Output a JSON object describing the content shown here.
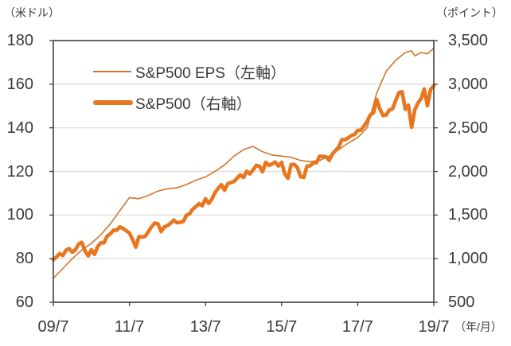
{
  "chart_data": {
    "type": "line",
    "title": "",
    "left_axis": {
      "unit": "（米ドル）",
      "min": 60,
      "max": 180,
      "ticks": [
        180,
        160,
        140,
        120,
        100,
        80,
        60
      ],
      "tick_labels": [
        "180",
        "160",
        "140",
        "120",
        "100",
        "80",
        "60"
      ],
      "gridlines": [
        160,
        140,
        120,
        100,
        80
      ]
    },
    "right_axis": {
      "unit": "（ポイント）",
      "min": 500,
      "max": 3500,
      "ticks": [
        3500,
        3000,
        2500,
        2000,
        1500,
        1000,
        500
      ],
      "tick_labels": [
        "3,500",
        "3,000",
        "2,500",
        "2,000",
        "1,500",
        "1,000",
        "500"
      ]
    },
    "x_axis": {
      "unit": "（年/月）",
      "min": 0,
      "max": 120,
      "tick_positions": [
        0,
        24,
        48,
        72,
        96,
        120
      ],
      "tick_labels": [
        "09/7",
        "11/7",
        "13/7",
        "15/7",
        "17/7",
        "19/7"
      ],
      "x_unit_note": "months since 2009/7"
    },
    "series": [
      {
        "name": "S&P500 EPS（左軸）",
        "axis": "left",
        "color": "#d2752e",
        "width": 1.6,
        "x": [
          0,
          3,
          6,
          9,
          12,
          15,
          18,
          21,
          24,
          27,
          30,
          33,
          36,
          39,
          42,
          45,
          48,
          51,
          54,
          57,
          60,
          63,
          66,
          69,
          72,
          75,
          78,
          81,
          84,
          87,
          90,
          93,
          96,
          99,
          102,
          105,
          108,
          111,
          113,
          114,
          116,
          118,
          120
        ],
        "values": [
          71,
          75.5,
          80,
          84,
          87,
          91,
          96,
          102,
          108,
          107.5,
          109,
          111,
          112,
          112.5,
          114,
          116,
          117.5,
          120,
          123,
          127,
          130,
          131.5,
          129,
          127.5,
          127,
          126.5,
          125,
          124.5,
          125,
          127,
          130,
          133,
          135.5,
          140,
          156,
          166,
          171,
          174.5,
          175.3,
          173,
          174.5,
          173.9,
          176.5
        ]
      },
      {
        "name": "S&P500（右軸）",
        "axis": "right",
        "color": "#e8761e",
        "width": 4.6,
        "x_step": 1,
        "values": [
          987,
          1021,
          1057,
          1036,
          1096,
          1115,
          1074,
          1104,
          1169,
          1187,
          1089,
          1031,
          1102,
          1049,
          1141,
          1183,
          1181,
          1258,
          1286,
          1327,
          1326,
          1364,
          1345,
          1321,
          1292,
          1219,
          1131,
          1253,
          1247,
          1258,
          1312,
          1366,
          1408,
          1398,
          1310,
          1362,
          1379,
          1407,
          1441,
          1412,
          1416,
          1426,
          1498,
          1515,
          1569,
          1598,
          1631,
          1606,
          1686,
          1633,
          1682,
          1757,
          1806,
          1848,
          1783,
          1859,
          1872,
          1884,
          1924,
          1960,
          1931,
          2003,
          1972,
          2018,
          2068,
          2059,
          1995,
          2105,
          2068,
          2086,
          2107,
          2063,
          2104,
          1972,
          1920,
          2079,
          2080,
          2044,
          1940,
          1932,
          2060,
          2065,
          2097,
          2099,
          2174,
          2171,
          2168,
          2126,
          2199,
          2239,
          2279,
          2364,
          2363,
          2384,
          2412,
          2423,
          2470,
          2472,
          2519,
          2575,
          2648,
          2674,
          2824,
          2714,
          2641,
          2648,
          2705,
          2718,
          2816,
          2902,
          2914,
          2712,
          2760,
          2507,
          2704,
          2784,
          2834,
          2946,
          2752,
          2942,
          2980
        ]
      }
    ],
    "style": {
      "border_color": "#404040",
      "gridline_color": "#d9d9d9",
      "text_color": "#3a3a3a",
      "background": "#ffffff"
    }
  }
}
